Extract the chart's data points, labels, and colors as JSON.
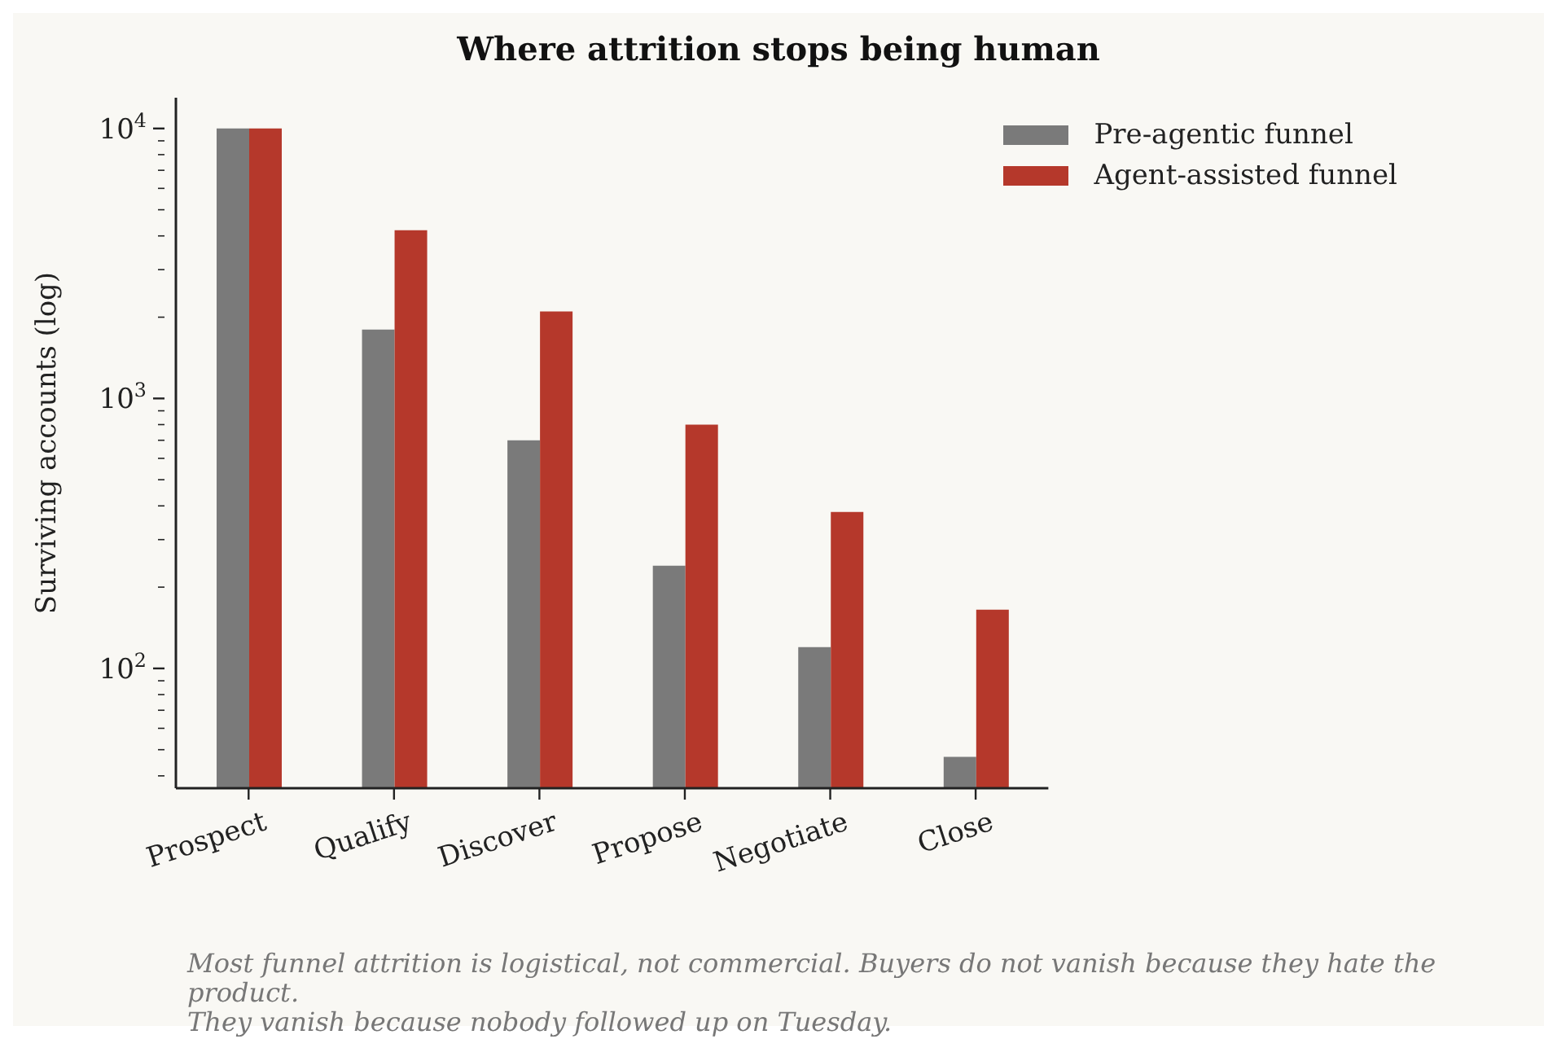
{
  "chart_data": {
    "type": "bar",
    "title": "Where attrition stops being human",
    "ylabel": "Surviving accounts (log)",
    "categories": [
      "Prospect",
      "Qualify",
      "Discover",
      "Propose",
      "Negotiate",
      "Close"
    ],
    "series": [
      {
        "name": "Pre-agentic funnel",
        "color": "#7a7a7a",
        "values": [
          10000,
          1800,
          700,
          240,
          120,
          47
        ]
      },
      {
        "name": "Agent-assisted funnel",
        "color": "#b5382b",
        "values": [
          10000,
          4200,
          2100,
          800,
          380,
          165
        ]
      }
    ],
    "log": "y",
    "ylim": [
      36,
      13000
    ],
    "yticks": [
      {
        "value": 100,
        "label": "10$^{2}$"
      },
      {
        "value": 1000,
        "label": "10$^{3}$"
      },
      {
        "value": 10000,
        "label": "10$^{4}$"
      },
      {
        "value": 40,
        "label": null
      },
      {
        "value": 50,
        "label": null
      },
      {
        "value": 60,
        "label": null
      },
      {
        "value": 70,
        "label": null
      },
      {
        "value": 80,
        "label": null
      },
      {
        "value": 90,
        "label": null
      },
      {
        "value": 200,
        "label": null
      },
      {
        "value": 300,
        "label": null
      },
      {
        "value": 400,
        "label": null
      },
      {
        "value": 500,
        "label": null
      },
      {
        "value": 600,
        "label": null
      },
      {
        "value": 700,
        "label": null
      },
      {
        "value": 800,
        "label": null
      },
      {
        "value": 900,
        "label": null
      },
      {
        "value": 2000,
        "label": null
      },
      {
        "value": 3000,
        "label": null
      },
      {
        "value": 4000,
        "label": null
      },
      {
        "value": 5000,
        "label": null
      },
      {
        "value": 6000,
        "label": null
      },
      {
        "value": 7000,
        "label": null
      },
      {
        "value": 8000,
        "label": null
      },
      {
        "value": 9000,
        "label": null
      }
    ],
    "legend": "top right",
    "grid": false,
    "annotations": [
      "Most funnel attrition is logistical, not commercial. Buyers do not vanish because they hate the product.",
      "They vanish because nobody followed up on Tuesday."
    ]
  }
}
